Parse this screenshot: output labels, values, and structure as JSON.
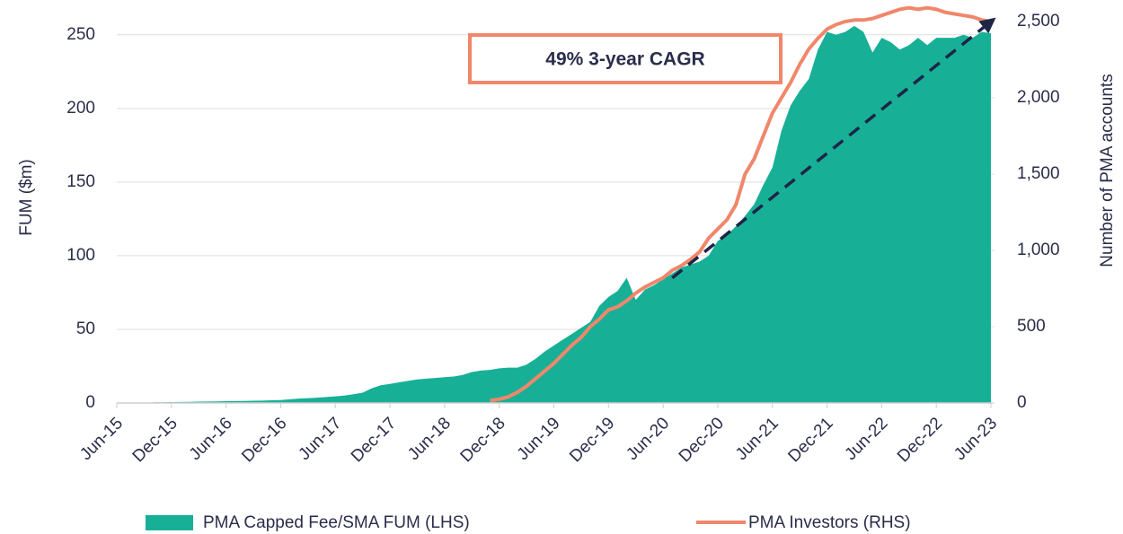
{
  "chart_data": {
    "type": "area_line",
    "annotation": "49% 3-year CAGR",
    "ylabel": "FUM ($m)",
    "y2label": "Number of PMA accounts",
    "categories": [
      "Jun-15",
      null,
      null,
      null,
      null,
      null,
      "Dec-15",
      null,
      null,
      null,
      null,
      null,
      "Jun-16",
      null,
      null,
      null,
      null,
      null,
      "Dec-16",
      null,
      null,
      null,
      null,
      null,
      "Jun-17",
      null,
      null,
      null,
      null,
      null,
      "Dec-17",
      null,
      null,
      null,
      null,
      null,
      "Jun-18",
      null,
      null,
      null,
      null,
      null,
      "Dec-18",
      null,
      null,
      null,
      null,
      null,
      "Jun-19",
      null,
      null,
      null,
      null,
      null,
      "Dec-19",
      null,
      null,
      null,
      null,
      null,
      "Jun-20",
      null,
      null,
      null,
      null,
      null,
      "Dec-20",
      null,
      null,
      null,
      null,
      null,
      "Jun-21",
      null,
      null,
      null,
      null,
      null,
      "Dec-21",
      null,
      null,
      null,
      null,
      null,
      "Jun-22",
      null,
      null,
      null,
      null,
      null,
      "Dec-22",
      null,
      null,
      null,
      null,
      null,
      "Jun-23"
    ],
    "series": [
      {
        "name": "PMA Capped Fee/SMA FUM (LHS)",
        "color": "#17b097",
        "kind": "area",
        "values": [
          null,
          null,
          null,
          null,
          0.5,
          0.5,
          0.6,
          0.7,
          0.8,
          0.9,
          1.0,
          1.1,
          1.2,
          1.3,
          1.4,
          1.5,
          1.6,
          1.8,
          2.0,
          2.5,
          3,
          3.3,
          3.6,
          4,
          4.5,
          5,
          6,
          7,
          10,
          12,
          13,
          14,
          15,
          16,
          16.5,
          17,
          17.5,
          18,
          19,
          21,
          22,
          22.5,
          23.5,
          24,
          24,
          26,
          30,
          35,
          39,
          43,
          47,
          51,
          55,
          66,
          72,
          76,
          85,
          70,
          77,
          80,
          84,
          88,
          92,
          94,
          96,
          100,
          110,
          114,
          120,
          127,
          135,
          148,
          160,
          185,
          202,
          212,
          220,
          240,
          252,
          250,
          252,
          256,
          252,
          238,
          248,
          245,
          240,
          243,
          248,
          243,
          248,
          248,
          248,
          250,
          248,
          252,
          251
        ]
      },
      {
        "name": "PMA Investors (RHS)",
        "color": "#f0876b",
        "kind": "line",
        "axis": "y2",
        "values": [
          null,
          null,
          null,
          null,
          null,
          null,
          null,
          null,
          null,
          null,
          null,
          null,
          null,
          null,
          null,
          null,
          null,
          null,
          null,
          null,
          null,
          null,
          null,
          null,
          null,
          null,
          null,
          null,
          null,
          null,
          null,
          null,
          null,
          null,
          null,
          null,
          null,
          null,
          null,
          null,
          null,
          15,
          25,
          40,
          70,
          110,
          160,
          210,
          260,
          320,
          380,
          430,
          500,
          550,
          610,
          630,
          670,
          720,
          760,
          790,
          820,
          870,
          900,
          940,
          990,
          1080,
          1140,
          1200,
          1300,
          1500,
          1600,
          1750,
          1900,
          2000,
          2100,
          2220,
          2320,
          2390,
          2450,
          2480,
          2500,
          2510,
          2510,
          2520,
          2540,
          2560,
          2580,
          2590,
          2580,
          2590,
          2580,
          2560,
          2550,
          2540,
          2530,
          2510,
          2500
        ]
      }
    ],
    "trend": {
      "color": "#1e2546",
      "axis": "y2",
      "values": [
        null,
        null,
        null,
        null,
        null,
        null,
        null,
        null,
        null,
        null,
        null,
        null,
        null,
        null,
        null,
        null,
        null,
        null,
        null,
        null,
        null,
        null,
        null,
        null,
        null,
        null,
        null,
        null,
        null,
        null,
        null,
        null,
        null,
        null,
        null,
        null,
        null,
        null,
        null,
        null,
        null,
        null,
        null,
        null,
        null,
        null,
        null,
        null,
        null,
        null,
        null,
        null,
        null,
        null,
        null,
        null,
        null,
        null,
        null,
        null,
        null,
        820,
        null,
        null,
        null,
        null,
        null,
        null,
        null,
        null,
        null,
        null,
        null,
        null,
        null,
        null,
        null,
        null,
        null,
        null,
        null,
        null,
        null,
        null,
        null,
        null,
        null,
        null,
        null,
        null,
        null,
        null,
        null,
        null,
        null,
        null,
        2500
      ]
    },
    "ylim": [
      0,
      259
    ],
    "yticks": [
      0,
      50,
      100,
      150,
      200,
      250
    ],
    "y2lim": [
      0,
      2500
    ],
    "y2ticks": [
      0,
      500,
      {
        "value": 1000,
        "label": "1,000"
      },
      {
        "value": 1500,
        "label": "1,500"
      },
      {
        "value": 2000,
        "label": "2,000"
      },
      {
        "value": 2500,
        "label": "2,500"
      }
    ],
    "grid": true,
    "legend": "bottom"
  }
}
